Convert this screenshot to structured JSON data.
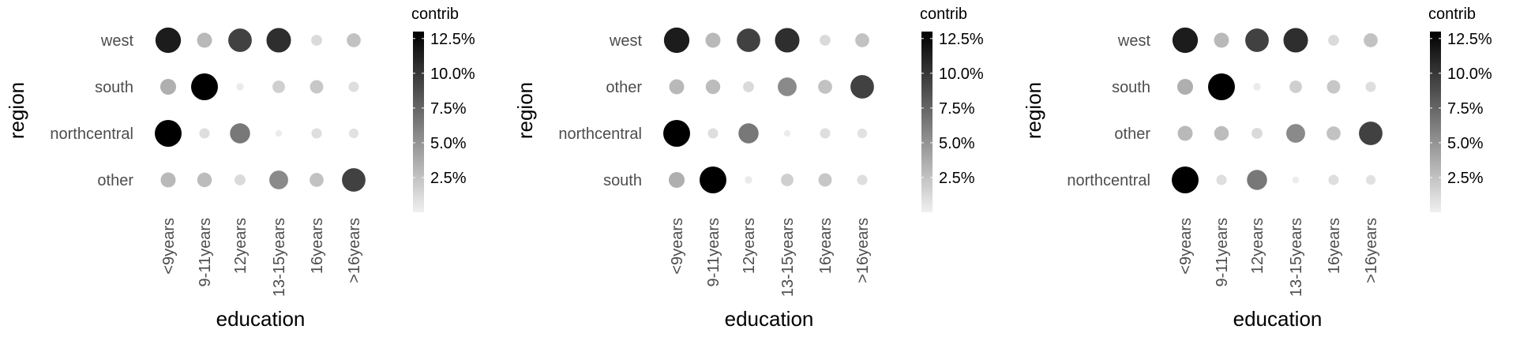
{
  "chart_data": [
    {
      "type": "scatter",
      "title": "",
      "xlabel": "education",
      "ylabel": "region",
      "x_categories": [
        "<9years",
        "9-11years",
        "12years",
        "13-15years",
        "16years",
        ">16years"
      ],
      "y_categories": [
        "west",
        "south",
        "northcentral",
        "other"
      ],
      "values": [
        [
          11.5,
          3.0,
          9.5,
          10.5,
          1.2,
          2.5
        ],
        [
          3.5,
          13.0,
          0.3,
          1.8,
          2.2,
          1.0
        ],
        [
          13.0,
          1.0,
          6.5,
          0.2,
          1.0,
          0.8
        ],
        [
          3.0,
          2.8,
          1.2,
          5.5,
          2.5,
          9.5
        ]
      ],
      "legend": {
        "title": "contrib",
        "ticks": [
          "2.5%",
          "5.0%",
          "7.5%",
          "10.0%",
          "12.5%"
        ],
        "tick_values": [
          2.5,
          5.0,
          7.5,
          10.0,
          12.5
        ],
        "range": [
          0,
          13
        ],
        "position": "right"
      },
      "grid": false
    },
    {
      "type": "scatter",
      "title": "",
      "xlabel": "education",
      "ylabel": "region",
      "x_categories": [
        "<9years",
        "9-11years",
        "12years",
        "13-15years",
        "16years",
        ">16years"
      ],
      "y_categories": [
        "west",
        "other",
        "northcentral",
        "south"
      ],
      "values": [
        [
          11.5,
          3.0,
          9.5,
          10.5,
          1.2,
          2.5
        ],
        [
          3.0,
          2.8,
          1.2,
          5.5,
          2.5,
          9.5
        ],
        [
          13.0,
          1.0,
          6.5,
          0.2,
          1.0,
          0.8
        ],
        [
          3.5,
          13.0,
          0.3,
          1.8,
          2.2,
          1.0
        ]
      ],
      "legend": {
        "title": "contrib",
        "ticks": [
          "2.5%",
          "5.0%",
          "7.5%",
          "10.0%",
          "12.5%"
        ],
        "tick_values": [
          2.5,
          5.0,
          7.5,
          10.0,
          12.5
        ],
        "range": [
          0,
          13
        ],
        "position": "right"
      },
      "grid": false
    },
    {
      "type": "scatter",
      "title": "",
      "xlabel": "education",
      "ylabel": "region",
      "x_categories": [
        "<9years",
        "9-11years",
        "12years",
        "13-15years",
        "16years",
        ">16years"
      ],
      "y_categories": [
        "west",
        "south",
        "other",
        "northcentral"
      ],
      "values": [
        [
          11.5,
          3.0,
          9.5,
          10.5,
          1.2,
          2.5
        ],
        [
          3.5,
          13.0,
          0.3,
          1.8,
          2.2,
          1.0
        ],
        [
          3.0,
          2.8,
          1.2,
          5.5,
          2.5,
          9.5
        ],
        [
          13.0,
          1.0,
          6.5,
          0.2,
          1.0,
          0.8
        ]
      ],
      "legend": {
        "title": "contrib",
        "ticks": [
          "2.5%",
          "5.0%",
          "7.5%",
          "10.0%",
          "12.5%"
        ],
        "tick_values": [
          2.5,
          5.0,
          7.5,
          10.0,
          12.5
        ],
        "range": [
          0,
          13
        ],
        "position": "right"
      },
      "grid": false
    }
  ],
  "colors": {
    "low": "#f0f0f0",
    "high": "#000000"
  }
}
